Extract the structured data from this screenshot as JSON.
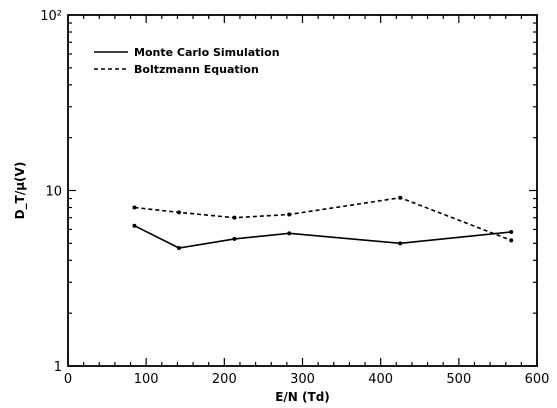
{
  "chart_data": {
    "type": "line",
    "xlabel": "E/N (Td)",
    "ylabel": "D_T/μ(V)",
    "xlim": [
      0,
      600
    ],
    "ylim": [
      1,
      100
    ],
    "y_scale": "log",
    "x_ticks": [
      0,
      100,
      200,
      300,
      400,
      500,
      600
    ],
    "x_tick_labels": [
      "0",
      "100",
      "200",
      "300",
      "400",
      "500",
      "600"
    ],
    "y_ticks": [
      1,
      10,
      100
    ],
    "y_tick_labels": [
      "1",
      "10",
      "10²"
    ],
    "legend_position": "top-left",
    "grid": false,
    "series": [
      {
        "name": "Monte Carlo Simulation",
        "style": "solid",
        "x": [
          85,
          142,
          213,
          283,
          425,
          567
        ],
        "y": [
          6.3,
          4.7,
          5.3,
          5.7,
          5.0,
          5.8
        ]
      },
      {
        "name": "Boltzmann Equation",
        "style": "dashed",
        "x": [
          85,
          142,
          213,
          283,
          425,
          567
        ],
        "y": [
          8.0,
          7.5,
          7.0,
          7.3,
          9.1,
          5.2
        ]
      }
    ]
  }
}
